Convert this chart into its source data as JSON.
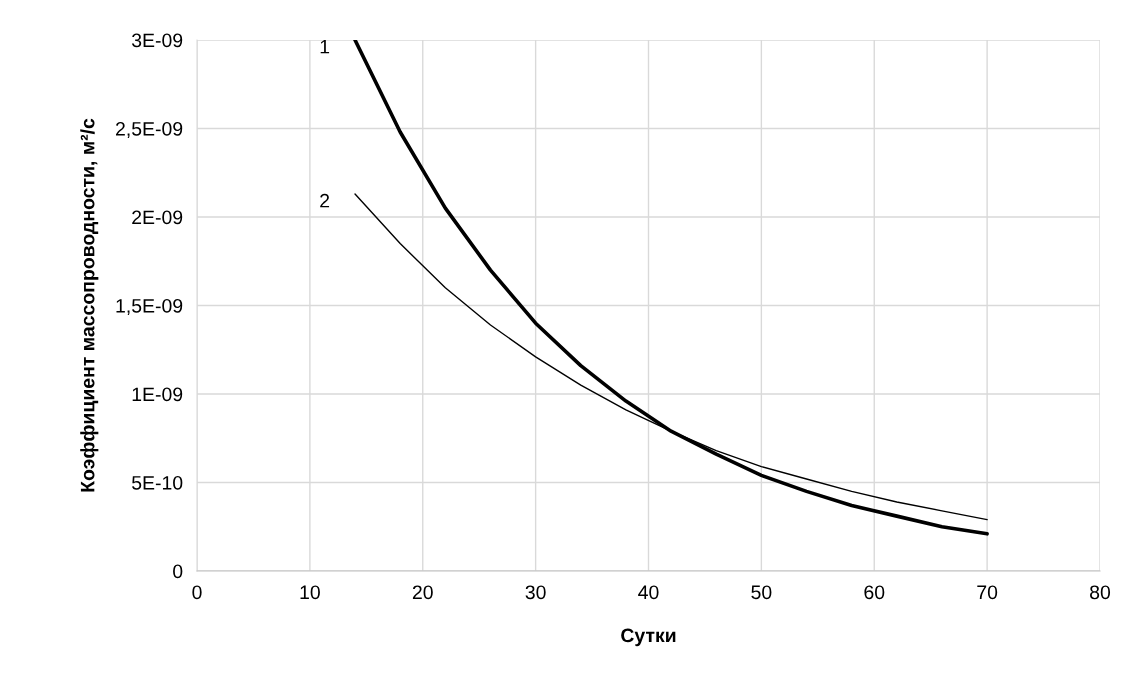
{
  "chart_data": {
    "type": "line",
    "xlabel": "Сутки",
    "ylabel": "Коэффициент массопроводности, м²/с",
    "x": [
      14,
      18,
      22,
      26,
      30,
      34,
      38,
      42,
      46,
      50,
      54,
      58,
      62,
      66,
      70
    ],
    "series": [
      {
        "name": "1",
        "color": "#000000",
        "values": [
          3e-09,
          2.48e-09,
          2.05e-09,
          1.7e-09,
          1.4e-09,
          1.16e-09,
          9.6e-10,
          7.9e-10,
          6.6e-10,
          5.4e-10,
          4.5e-10,
          3.7e-10,
          3.1e-10,
          2.5e-10,
          2.1e-10
        ]
      },
      {
        "name": "2",
        "color": "#000000",
        "values": [
          2.13e-09,
          1.85e-09,
          1.6e-09,
          1.39e-09,
          1.21e-09,
          1.05e-09,
          9.1e-10,
          7.9e-10,
          6.8e-10,
          5.9e-10,
          5.2e-10,
          4.5e-10,
          3.9e-10,
          3.4e-10,
          2.9e-10
        ]
      }
    ],
    "xlim": [
      0,
      80
    ],
    "xticks": [
      0,
      10,
      20,
      30,
      40,
      50,
      60,
      70,
      80
    ],
    "ylim": [
      0,
      3e-09
    ],
    "yticks": [
      {
        "value": 0,
        "label": "0"
      },
      {
        "value": 5e-10,
        "label": "5E-10"
      },
      {
        "value": 1e-09,
        "label": "1E-09"
      },
      {
        "value": 1.5e-09,
        "label": "1,5E-09"
      },
      {
        "value": 2e-09,
        "label": "2E-09"
      },
      {
        "value": 2.5e-09,
        "label": "2,5E-09"
      },
      {
        "value": 3e-09,
        "label": "3E-09"
      }
    ],
    "grid": true,
    "line_style": "solid",
    "marker": "none"
  }
}
